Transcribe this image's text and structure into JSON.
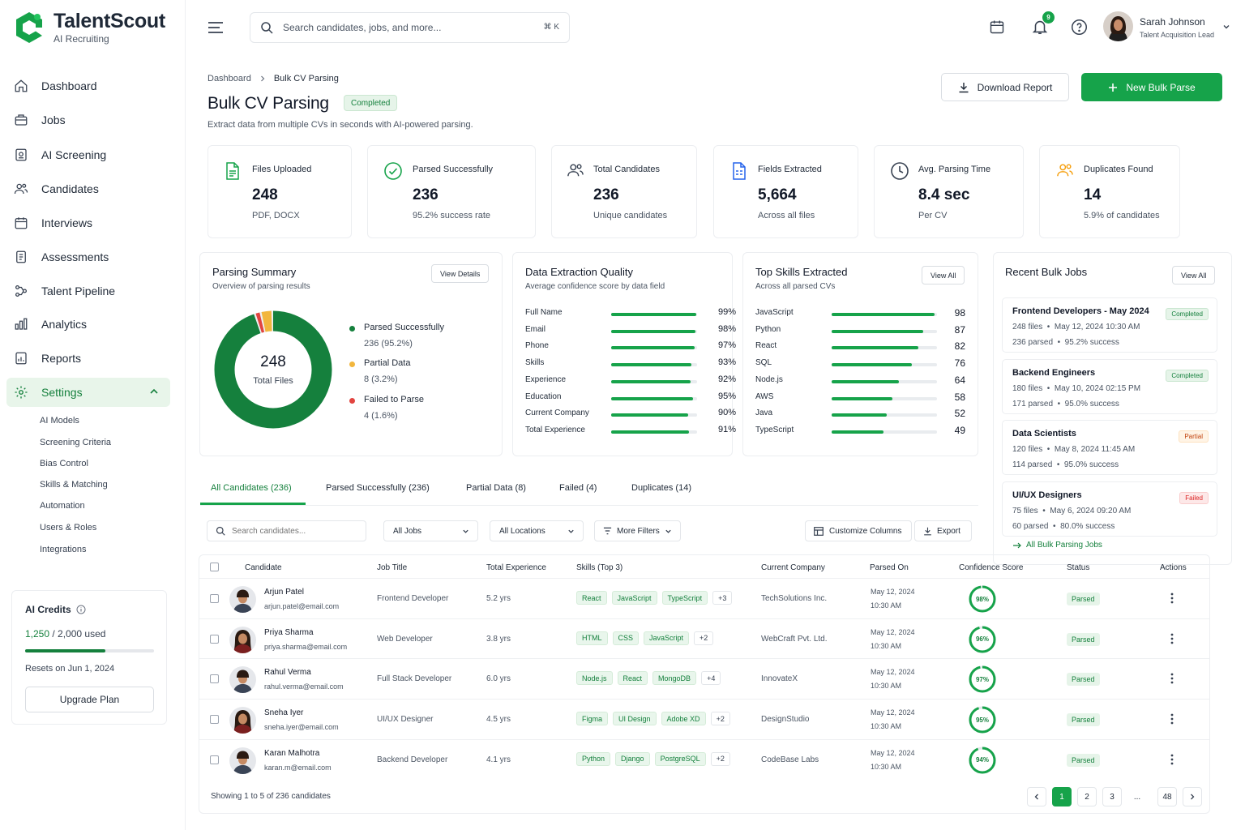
{
  "app": {
    "name": "TalentScout",
    "tagline": "AI Recruiting"
  },
  "sidebar": {
    "items": [
      {
        "label": "Dashboard",
        "icon": "home-icon"
      },
      {
        "label": "Jobs",
        "icon": "briefcase-icon"
      },
      {
        "label": "AI Screening",
        "icon": "ai-screening-icon"
      },
      {
        "label": "Candidates",
        "icon": "users-icon"
      },
      {
        "label": "Interviews",
        "icon": "calendar-icon"
      },
      {
        "label": "Assessments",
        "icon": "clipboard-icon"
      },
      {
        "label": "Talent Pipeline",
        "icon": "pipeline-icon"
      },
      {
        "label": "Analytics",
        "icon": "bar-chart-icon"
      },
      {
        "label": "Reports",
        "icon": "report-icon"
      },
      {
        "label": "Settings",
        "icon": "gear-icon",
        "active": true
      }
    ],
    "settings_sub": [
      "AI Models",
      "Screening Criteria",
      "Bias Control",
      "Skills & Matching",
      "Automation",
      "Users & Roles",
      "Integrations"
    ],
    "credits": {
      "title": "AI Credits",
      "used": "1,250",
      "total": "/ 2,000 used",
      "fraction": 0.625,
      "reset": "Resets on Jun 1, 2024",
      "upgrade": "Upgrade Plan"
    }
  },
  "topbar": {
    "search_placeholder": "Search candidates, jobs, and more...",
    "shortcut": "⌘ K",
    "notifications": "9",
    "user": {
      "name": "Sarah Johnson",
      "role": "Talent Acquisition Lead"
    }
  },
  "header": {
    "breadcrumb": [
      "Dashboard",
      "Bulk CV Parsing"
    ],
    "title": "Bulk CV Parsing",
    "status": "Completed",
    "description": "Extract data from multiple CVs in seconds with AI-powered parsing.",
    "download_btn": "Download Report",
    "new_btn": "New Bulk Parse"
  },
  "stats": [
    {
      "label": "Files Uploaded",
      "value": "248",
      "sub": "PDF, DOCX",
      "icon": "file-icon"
    },
    {
      "label": "Parsed Successfully",
      "value": "236",
      "sub": "95.2% success rate",
      "icon": "check-circle-icon"
    },
    {
      "label": "Total Candidates",
      "value": "236",
      "sub": "Unique candidates",
      "icon": "users-icon"
    },
    {
      "label": "Fields Extracted",
      "value": "5,664",
      "sub": "Across all files",
      "icon": "document-fields-icon"
    },
    {
      "label": "Avg. Parsing Time",
      "value": "8.4 sec",
      "sub": "Per CV",
      "icon": "clock-icon"
    },
    {
      "label": "Duplicates Found",
      "value": "14",
      "sub": "5.9% of candidates",
      "icon": "duplicate-users-icon"
    }
  ],
  "parsing_summary": {
    "title": "Parsing Summary",
    "subtitle": "Overview of parsing results",
    "button": "View Details",
    "total": "248",
    "total_label": "Total Files",
    "segments": [
      {
        "label": "Parsed Successfully",
        "value": "236 (95.2%)",
        "count": 236,
        "color": "#15803d"
      },
      {
        "label": "Partial Data",
        "value": "8 (3.2%)",
        "count": 8,
        "color": "#f2b63d"
      },
      {
        "label": "Failed to Parse",
        "value": "4 (1.6%)",
        "count": 4,
        "color": "#e2443f"
      }
    ]
  },
  "quality": {
    "title": "Data Extraction Quality",
    "subtitle": "Average confidence score by data field",
    "rows": [
      {
        "label": "Full Name",
        "value": "99%",
        "pct": 99
      },
      {
        "label": "Email",
        "value": "98%",
        "pct": 98
      },
      {
        "label": "Phone",
        "value": "97%",
        "pct": 97
      },
      {
        "label": "Skills",
        "value": "93%",
        "pct": 93
      },
      {
        "label": "Experience",
        "value": "92%",
        "pct": 92
      },
      {
        "label": "Education",
        "value": "95%",
        "pct": 95
      },
      {
        "label": "Current Company",
        "value": "90%",
        "pct": 90
      },
      {
        "label": "Total Experience",
        "value": "91%",
        "pct": 91
      }
    ]
  },
  "skills": {
    "title": "Top Skills Extracted",
    "subtitle": "Across all parsed CVs",
    "button": "View All",
    "rows": [
      {
        "label": "JavaScript",
        "value": "98",
        "n": 98
      },
      {
        "label": "Python",
        "value": "87",
        "n": 87
      },
      {
        "label": "React",
        "value": "82",
        "n": 82
      },
      {
        "label": "SQL",
        "value": "76",
        "n": 76
      },
      {
        "label": "Node.js",
        "value": "64",
        "n": 64
      },
      {
        "label": "AWS",
        "value": "58",
        "n": 58
      },
      {
        "label": "Java",
        "value": "52",
        "n": 52
      },
      {
        "label": "TypeScript",
        "value": "49",
        "n": 49
      }
    ]
  },
  "recent_jobs": {
    "title": "Recent Bulk Jobs",
    "button": "View All",
    "link": "All Bulk Parsing Jobs",
    "items": [
      {
        "title": "Frontend Developers - May 2024",
        "status": "Completed",
        "kind": "ok",
        "meta": "248 files  •  May 12, 2024 10:30 AM",
        "stats": "236 parsed  •  95.2% success"
      },
      {
        "title": "Backend Engineers",
        "status": "Completed",
        "kind": "ok",
        "meta": "180 files  •  May 10, 2024 02:15 PM",
        "stats": "171 parsed  •  95.0% success"
      },
      {
        "title": "Data Scientists",
        "status": "Partial",
        "kind": "part",
        "meta": "120 files  •  May 8, 2024 11:45 AM",
        "stats": "114 parsed  •  95.0% success"
      },
      {
        "title": "UI/UX Designers",
        "status": "Failed",
        "kind": "fail",
        "meta": "75 files  •  May 6, 2024 09:20 AM",
        "stats": "60 parsed  •  80.0% success"
      }
    ]
  },
  "tabs": [
    "All Candidates (236)",
    "Parsed Successfully (236)",
    "Partial Data (8)",
    "Failed (4)",
    "Duplicates (14)"
  ],
  "filters": {
    "search_placeholder": "Search candidates...",
    "jobs": "All Jobs",
    "locations": "All Locations",
    "more": "More Filters",
    "customize": "Customize Columns",
    "export": "Export"
  },
  "table": {
    "headers": [
      "Candidate",
      "Job Title",
      "Total Experience",
      "Skills (Top 3)",
      "Current Company",
      "Parsed On",
      "Confidence Score",
      "Status",
      "Actions"
    ],
    "rows": [
      {
        "name": "Arjun Patel",
        "email": "arjun.patel@email.com",
        "job": "Frontend Developer",
        "exp": "5.2 yrs",
        "skills": [
          "React",
          "JavaScript",
          "TypeScript"
        ],
        "more": "+3",
        "company": "TechSolutions Inc.",
        "date": "May 12, 2024",
        "time": "10:30 AM",
        "conf": "98%",
        "pct": 98,
        "status": "Parsed",
        "gender": "m"
      },
      {
        "name": "Priya Sharma",
        "email": "priya.sharma@email.com",
        "job": "Web Developer",
        "exp": "3.8 yrs",
        "skills": [
          "HTML",
          "CSS",
          "JavaScript"
        ],
        "more": "+2",
        "company": "WebCraft Pvt. Ltd.",
        "date": "May 12, 2024",
        "time": "10:30 AM",
        "conf": "96%",
        "pct": 96,
        "status": "Parsed",
        "gender": "f"
      },
      {
        "name": "Rahul Verma",
        "email": "rahul.verma@email.com",
        "job": "Full Stack Developer",
        "exp": "6.0 yrs",
        "skills": [
          "Node.js",
          "React",
          "MongoDB"
        ],
        "more": "+4",
        "company": "InnovateX",
        "date": "May 12, 2024",
        "time": "10:30 AM",
        "conf": "97%",
        "pct": 97,
        "status": "Parsed",
        "gender": "m"
      },
      {
        "name": "Sneha Iyer",
        "email": "sneha.iyer@email.com",
        "job": "UI/UX Designer",
        "exp": "4.5 yrs",
        "skills": [
          "Figma",
          "UI Design",
          "Adobe XD"
        ],
        "more": "+2",
        "company": "DesignStudio",
        "date": "May 12, 2024",
        "time": "10:30 AM",
        "conf": "95%",
        "pct": 95,
        "status": "Parsed",
        "gender": "f"
      },
      {
        "name": "Karan Malhotra",
        "email": "karan.m@email.com",
        "job": "Backend Developer",
        "exp": "4.1 yrs",
        "skills": [
          "Python",
          "Django",
          "PostgreSQL"
        ],
        "more": "+2",
        "company": "CodeBase Labs",
        "date": "May 12, 2024",
        "time": "10:30 AM",
        "conf": "94%",
        "pct": 94,
        "status": "Parsed",
        "gender": "m"
      }
    ],
    "showing": "Showing 1 to 5 of 236 candidates",
    "pages": [
      "1",
      "2",
      "3",
      "...",
      "48"
    ]
  },
  "colors": {
    "accent": "#16a34a",
    "accent_dark": "#15803d",
    "partial": "#f2b63d",
    "failed": "#e2443f"
  }
}
